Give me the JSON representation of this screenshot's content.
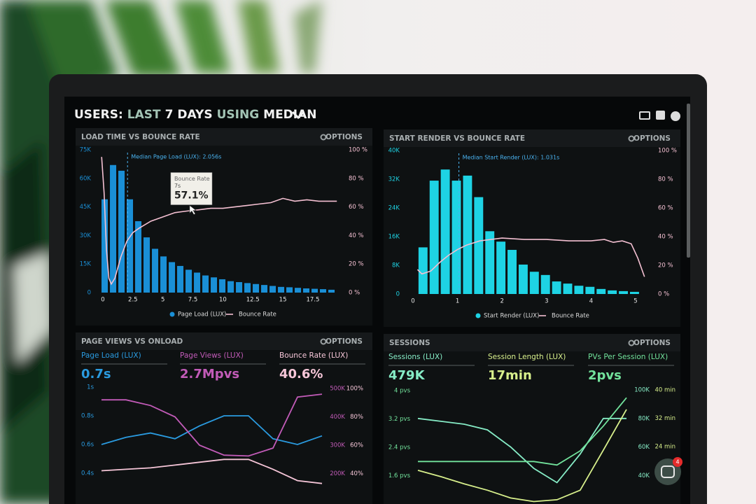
{
  "header": {
    "title_parts": [
      "USERS:",
      "LAST",
      "7 DAYS",
      "USING",
      "MEDIAN"
    ]
  },
  "notifications": 4,
  "chart_data": [
    {
      "type": "histogram",
      "title": "LOAD TIME VS BOUNCE RATE",
      "options": "OPTIONS",
      "bins": [
        -0.2,
        0.5,
        1.2,
        1.9,
        2.6,
        3.3,
        4.0,
        4.7,
        5.4,
        6.1,
        6.8,
        7.5,
        8.2,
        8.9,
        9.6,
        10.3,
        11.0,
        11.7,
        12.4,
        13.1,
        13.8,
        14.5,
        15.2,
        15.9,
        16.6,
        17.3,
        18.0,
        18.7,
        19.4
      ],
      "series": [
        {
          "name": "Page Load (LUX)",
          "color": "#1a8fd6",
          "values": [
            49000,
            67000,
            64000,
            49000,
            37500,
            29000,
            23000,
            19000,
            16000,
            14000,
            12000,
            10500,
            9000,
            8000,
            7000,
            6000,
            5500,
            5000,
            4500,
            4000,
            3500,
            3000,
            2800,
            2500,
            2200,
            2000,
            1800,
            1500
          ]
        },
        {
          "name": "Bounce Rate",
          "color": "#f4c0d2",
          "axis": "y2",
          "x": [
            -0.1,
            0.1,
            0.3,
            0.5,
            0.7,
            1.0,
            1.5,
            2.0,
            2.5,
            3.0,
            4.0,
            5.0,
            6.0,
            7.0,
            8.0,
            9.0,
            10.0,
            11.0,
            12.0,
            13.0,
            14.0,
            15.0,
            16.0,
            17.0,
            18.0,
            19.5
          ],
          "values": [
            95,
            70,
            30,
            10,
            6,
            10,
            25,
            36,
            42,
            45,
            50,
            53,
            56,
            57.1,
            58,
            59,
            59,
            60,
            61,
            62,
            63,
            66,
            64,
            65,
            64,
            64
          ]
        }
      ],
      "xlim": [
        -0.4,
        20
      ],
      "xticks": [
        0,
        2.5,
        5,
        7.5,
        10,
        12.5,
        15,
        17.5
      ],
      "ylim": [
        0,
        75000
      ],
      "yticks": [
        0,
        {
          "value": 15000,
          "label": "15K"
        },
        {
          "value": 30000,
          "label": "30K"
        },
        {
          "value": 45000,
          "label": "45K"
        },
        {
          "value": 60000,
          "label": "60K"
        },
        {
          "value": 75000,
          "label": "75K"
        }
      ],
      "y2lim": [
        0,
        100
      ],
      "y2ticks": [
        {
          "value": 0,
          "label": "0 %"
        },
        {
          "value": 20,
          "label": "20 %"
        },
        {
          "value": 40,
          "label": "40 %"
        },
        {
          "value": 60,
          "label": "60 %"
        },
        {
          "value": 80,
          "label": "80 %"
        },
        {
          "value": 100,
          "label": "100 %"
        }
      ],
      "annotations": [
        {
          "label": "Median Page Load (LUX): 2.056s",
          "x": 2.056
        }
      ],
      "tooltip": {
        "title": "Bounce Rate",
        "x": 7,
        "x_label": "7s",
        "value": 57.1,
        "value_label": "57.1%"
      }
    },
    {
      "type": "histogram",
      "title": "START RENDER VS BOUNCE RATE",
      "options": "OPTIONS",
      "bins": [
        0.1,
        0.35,
        0.6,
        0.85,
        1.1,
        1.35,
        1.6,
        1.85,
        2.1,
        2.35,
        2.6,
        2.85,
        3.1,
        3.35,
        3.6,
        3.85,
        4.1,
        4.35,
        4.6,
        4.85,
        5.1
      ],
      "series": [
        {
          "name": "Start Render (LUX)",
          "color": "#1ed3e4",
          "values": [
            13000,
            31600,
            34700,
            31600,
            33000,
            27000,
            17500,
            14600,
            12300,
            8200,
            6200,
            5300,
            3500,
            2900,
            2300,
            2000,
            1400,
            1000,
            800,
            600
          ]
        },
        {
          "name": "Bounce Rate",
          "color": "#f4c0d2",
          "axis": "y2",
          "x": [
            0.1,
            0.2,
            0.4,
            0.6,
            0.8,
            1.0,
            1.2,
            1.5,
            2.0,
            2.5,
            3.0,
            3.5,
            4.0,
            4.3,
            4.5,
            4.7,
            4.9,
            5.05,
            5.2
          ],
          "values": [
            17,
            14,
            16,
            22,
            27,
            31,
            34,
            37,
            39,
            38,
            38,
            37,
            37,
            38,
            36,
            37,
            35,
            25,
            12
          ]
        }
      ],
      "xlim": [
        0,
        5.3
      ],
      "xticks": [
        0,
        1,
        2,
        3,
        4,
        5
      ],
      "ylim": [
        0,
        40000
      ],
      "yticks": [
        0,
        {
          "value": 8000,
          "label": "8K"
        },
        {
          "value": 16000,
          "label": "16K"
        },
        {
          "value": 24000,
          "label": "24K"
        },
        {
          "value": 32000,
          "label": "32K"
        },
        {
          "value": 40000,
          "label": "40K"
        }
      ],
      "y2lim": [
        0,
        100
      ],
      "y2ticks": [
        {
          "value": 0,
          "label": "0 %"
        },
        {
          "value": 20,
          "label": "20 %"
        },
        {
          "value": 40,
          "label": "40 %"
        },
        {
          "value": 60,
          "label": "60 %"
        },
        {
          "value": 80,
          "label": "80 %"
        },
        {
          "value": 100,
          "label": "100 %"
        }
      ],
      "annotations": [
        {
          "label": "Median Start Render (LUX): 1.031s",
          "x": 1.031
        }
      ]
    },
    {
      "type": "line",
      "title": "PAGE VIEWS VS ONLOAD",
      "options": "OPTIONS",
      "categories": [
        null,
        null,
        null,
        null,
        null,
        null,
        null,
        null,
        null,
        null
      ],
      "series": [
        {
          "name": "Page Load (LUX)",
          "color": "#2a9be0",
          "kpi": 0.7,
          "kpi_label": "0.7s",
          "values": [
            0.6,
            0.65,
            0.68,
            0.64,
            0.73,
            0.8,
            0.8,
            0.64,
            0.6,
            0.66
          ]
        },
        {
          "name": "Page Views (LUX)",
          "color": "#c25bb8",
          "axis": "y2",
          "kpi": 2700000,
          "kpi_label": "2.7Mpvs",
          "values": [
            460000,
            460000,
            440000,
            400000,
            300000,
            265000,
            262000,
            290000,
            470000,
            480000
          ]
        },
        {
          "name": "Bounce Rate (LUX)",
          "color": "#f6c6d8",
          "axis": "y3",
          "kpi": 40.6,
          "kpi_label": "40.6%",
          "values": [
            42,
            43,
            44,
            46,
            48,
            50,
            50,
            43,
            35,
            33
          ]
        }
      ],
      "ylim": [
        0.2,
        1
      ],
      "yticks": [
        {
          "value": 1,
          "label": "1s"
        },
        {
          "value": 0.8,
          "label": "0.8s"
        },
        {
          "value": 0.6,
          "label": "0.6s"
        },
        {
          "value": 0.4,
          "label": "0.4s"
        }
      ],
      "y2lim": [
        100000,
        505000
      ],
      "y2ticks": [
        {
          "value": 500000,
          "label": "500K"
        },
        {
          "value": 400000,
          "label": "400K"
        },
        {
          "value": 300000,
          "label": "300K"
        },
        {
          "value": 200000,
          "label": "200K"
        }
      ],
      "y3lim": [
        20,
        101
      ],
      "y3ticks": [
        {
          "value": 100,
          "label": "100%"
        },
        {
          "value": 80,
          "label": "80%"
        },
        {
          "value": 60,
          "label": "60%"
        },
        {
          "value": 40,
          "label": "40%"
        }
      ]
    },
    {
      "type": "line",
      "title": "SESSIONS",
      "options": "OPTIONS",
      "categories": [
        null,
        null,
        null,
        null,
        null,
        null,
        null,
        null,
        null,
        null
      ],
      "series": [
        {
          "name": "Sessions (LUX)",
          "color": "#86ecc6",
          "axis": "y2",
          "kpi": 479000,
          "kpi_label": "479K",
          "values": [
            80000,
            78000,
            76000,
            72000,
            60000,
            45000,
            35000,
            55000,
            80000,
            80000
          ]
        },
        {
          "name": "Session Length (LUX)",
          "color": "#d8f08c",
          "axis": "y3",
          "kpi": 17,
          "kpi_label": "17min",
          "values": [
            17.3,
            15.5,
            13.5,
            11.7,
            9.5,
            8.5,
            9,
            11.7,
            23,
            34.5
          ]
        },
        {
          "name": "PVs Per Session (LUX)",
          "color": "#72e39c",
          "kpi": 2,
          "kpi_label": "2pvs",
          "values": [
            2.0,
            2.0,
            2.0,
            2.0,
            2.0,
            2.0,
            1.9,
            2.3,
            3.0,
            3.8
          ]
        }
      ],
      "ylim": [
        0.8,
        4.1
      ],
      "yticks": [
        {
          "value": 4,
          "label": "4 pvs"
        },
        {
          "value": 3.2,
          "label": "3.2 pvs"
        },
        {
          "value": 2.4,
          "label": "2.4 pvs"
        },
        {
          "value": 1.6,
          "label": "1.6 pvs"
        }
      ],
      "y2lim": [
        20000,
        102000
      ],
      "y2ticks": [
        {
          "value": 100000,
          "label": "100K"
        },
        {
          "value": 80000,
          "label": "80K"
        },
        {
          "value": 60000,
          "label": "60K"
        },
        {
          "value": 40000,
          "label": "40K"
        }
      ],
      "y3lim": [
        7.8,
        40.8
      ],
      "y3ticks": [
        {
          "value": 40,
          "label": "40 min"
        },
        {
          "value": 32,
          "label": "32 min"
        },
        {
          "value": 24,
          "label": "24 min"
        }
      ]
    }
  ]
}
